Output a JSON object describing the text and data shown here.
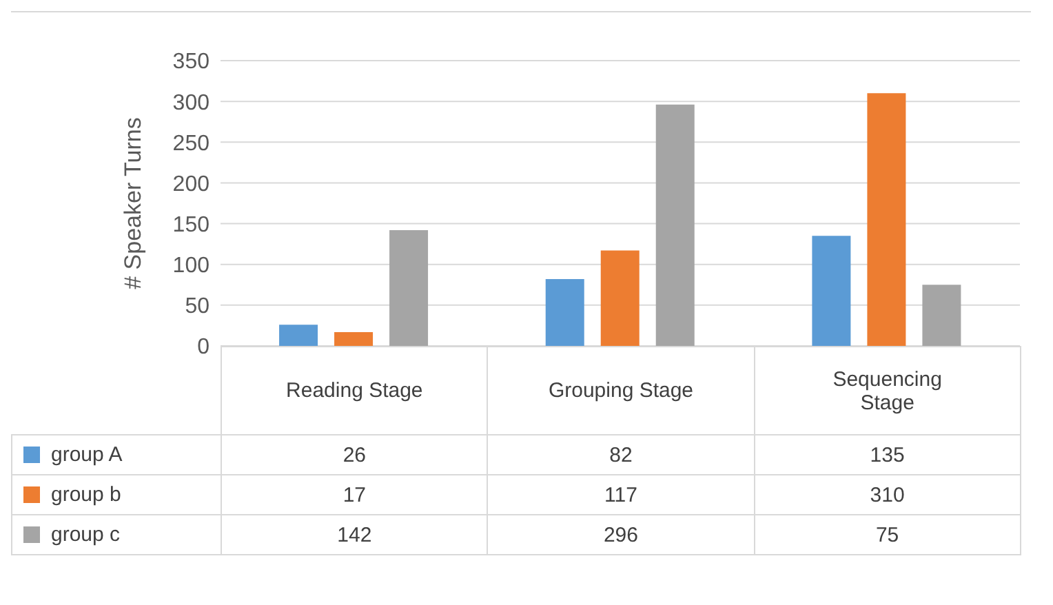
{
  "chart_data": {
    "type": "bar",
    "ylabel": "# Speaker Turns",
    "categories": [
      "Reading Stage",
      "Grouping Stage",
      "Sequencing Stage"
    ],
    "series": [
      {
        "name": "group A",
        "color": "#5b9bd5",
        "values": [
          26,
          82,
          135
        ]
      },
      {
        "name": "group b",
        "color": "#ed7d31",
        "values": [
          17,
          117,
          310
        ]
      },
      {
        "name": "group c",
        "color": "#a5a5a5",
        "values": [
          142,
          296,
          75
        ]
      }
    ],
    "ylim": [
      0,
      350
    ],
    "yticks": [
      0,
      50,
      100,
      150,
      200,
      250,
      300,
      350
    ],
    "grid": "y",
    "data_labels": true,
    "legend": "bottom"
  }
}
